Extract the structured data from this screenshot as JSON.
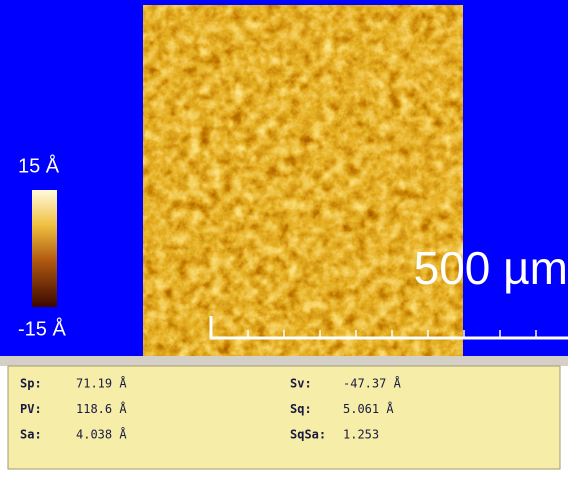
{
  "colorbar": {
    "max_label": "15 Å",
    "min_label": "-15 Å"
  },
  "scale_bar": "500 µm",
  "stats": [
    [
      {
        "label": "Sp:",
        "value": "71.19 Å"
      },
      {
        "label": "Sv:",
        "value": "-47.37 Å"
      }
    ],
    [
      {
        "label": "PV:",
        "value": "118.6 Å"
      },
      {
        "label": "Sq:",
        "value": "5.061 Å"
      }
    ],
    [
      {
        "label": "Sa:",
        "value": "4.038 Å"
      },
      {
        "label": "SqSa:",
        "value": "1.253"
      }
    ]
  ]
}
